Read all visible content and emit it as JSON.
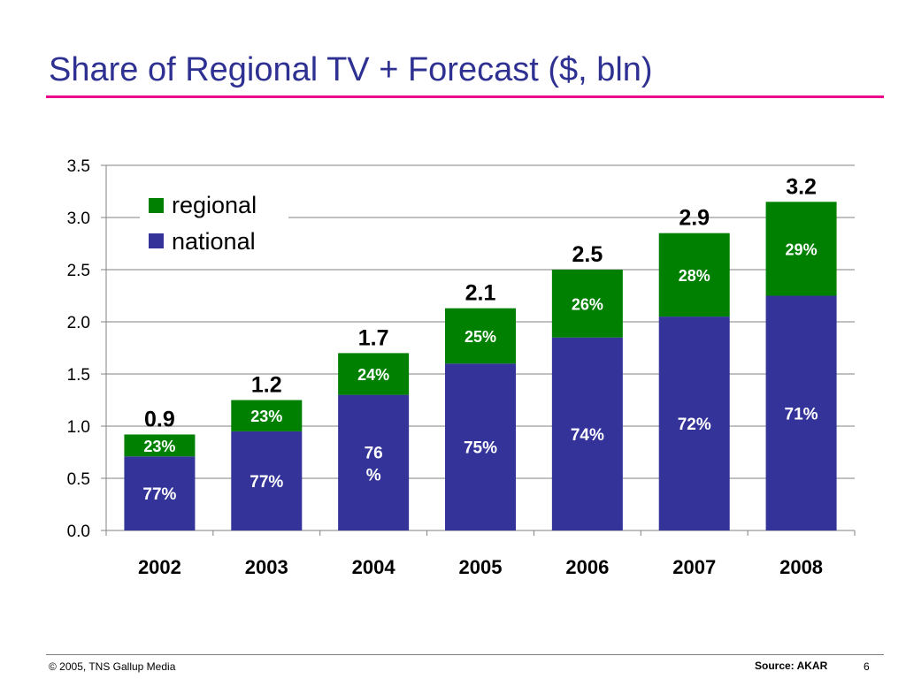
{
  "slide": {
    "title": "Share of Regional TV + Forecast ($, bln)",
    "footer_left": "© 2005, TNS Gallup Media",
    "source": "Source: AKAR",
    "page_number": "6"
  },
  "colors": {
    "national": "#333399",
    "regional": "#008000",
    "accent_rule": "#ec008c",
    "title": "#2e3192"
  },
  "chart_data": {
    "type": "bar",
    "stacked": true,
    "categories": [
      "2002",
      "2003",
      "2004",
      "2005",
      "2006",
      "2007",
      "2008"
    ],
    "series": [
      {
        "name": "national",
        "values": [
          0.71,
          0.95,
          1.3,
          1.6,
          1.85,
          2.05,
          2.25
        ],
        "labels": [
          "77%",
          "77%",
          "76\n%",
          "75%",
          "74%",
          "72%",
          "71%"
        ]
      },
      {
        "name": "regional",
        "values": [
          0.21,
          0.3,
          0.4,
          0.53,
          0.65,
          0.8,
          0.9
        ],
        "labels": [
          "23%",
          "23%",
          "24%",
          "25%",
          "26%",
          "28%",
          "29%"
        ]
      }
    ],
    "totals": [
      "0.9",
      "1.2",
      "1.7",
      "2.1",
      "2.5",
      "2.9",
      "3.2"
    ],
    "ylim": [
      0,
      3.5
    ],
    "yticks": [
      "0.0",
      "0.5",
      "1.0",
      "1.5",
      "2.0",
      "2.5",
      "3.0",
      "3.5"
    ],
    "grid": true,
    "legend": "top-left",
    "xlabel": "",
    "ylabel": ""
  }
}
